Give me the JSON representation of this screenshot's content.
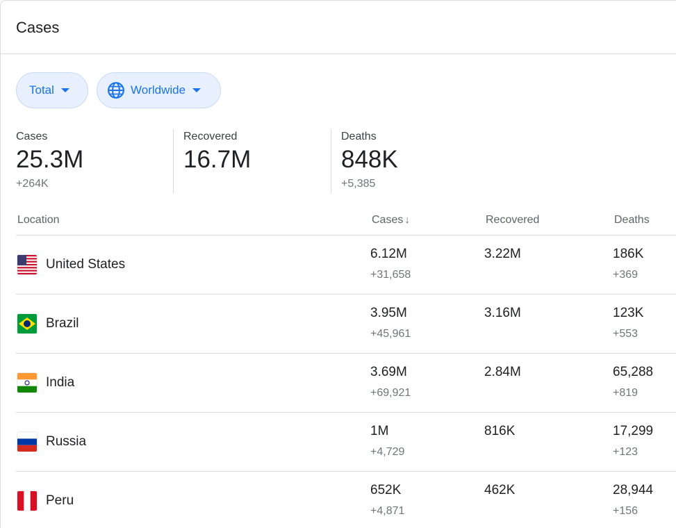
{
  "header": {
    "title": "Cases"
  },
  "filters": {
    "type_label": "Total",
    "region_label": "Worldwide",
    "globe_icon": "globe-icon"
  },
  "summary": {
    "cases": {
      "label": "Cases",
      "value": "25.3M",
      "delta": "+264K"
    },
    "recovered": {
      "label": "Recovered",
      "value": "16.7M"
    },
    "deaths": {
      "label": "Deaths",
      "value": "848K",
      "delta": "+5,385"
    }
  },
  "table": {
    "headers": {
      "location": "Location",
      "cases": "Cases",
      "recovered": "Recovered",
      "deaths": "Deaths"
    },
    "sort_icon": "arrow-down-icon",
    "rows": [
      {
        "country": "United States",
        "cases": "6.12M",
        "cases_delta": "+31,658",
        "recovered": "3.22M",
        "deaths": "186K",
        "deaths_delta": "+369"
      },
      {
        "country": "Brazil",
        "cases": "3.95M",
        "cases_delta": "+45,961",
        "recovered": "3.16M",
        "deaths": "123K",
        "deaths_delta": "+553"
      },
      {
        "country": "India",
        "cases": "3.69M",
        "cases_delta": "+69,921",
        "recovered": "2.84M",
        "deaths": "65,288",
        "deaths_delta": "+819"
      },
      {
        "country": "Russia",
        "cases": "1M",
        "cases_delta": "+4,729",
        "recovered": "816K",
        "deaths": "17,299",
        "deaths_delta": "+123"
      },
      {
        "country": "Peru",
        "cases": "652K",
        "cases_delta": "+4,871",
        "recovered": "462K",
        "deaths": "28,944",
        "deaths_delta": "+156"
      }
    ]
  },
  "colors": {
    "accent": "#1a73e8",
    "chip_bg": "#e8f0fe",
    "muted": "#70757a"
  }
}
